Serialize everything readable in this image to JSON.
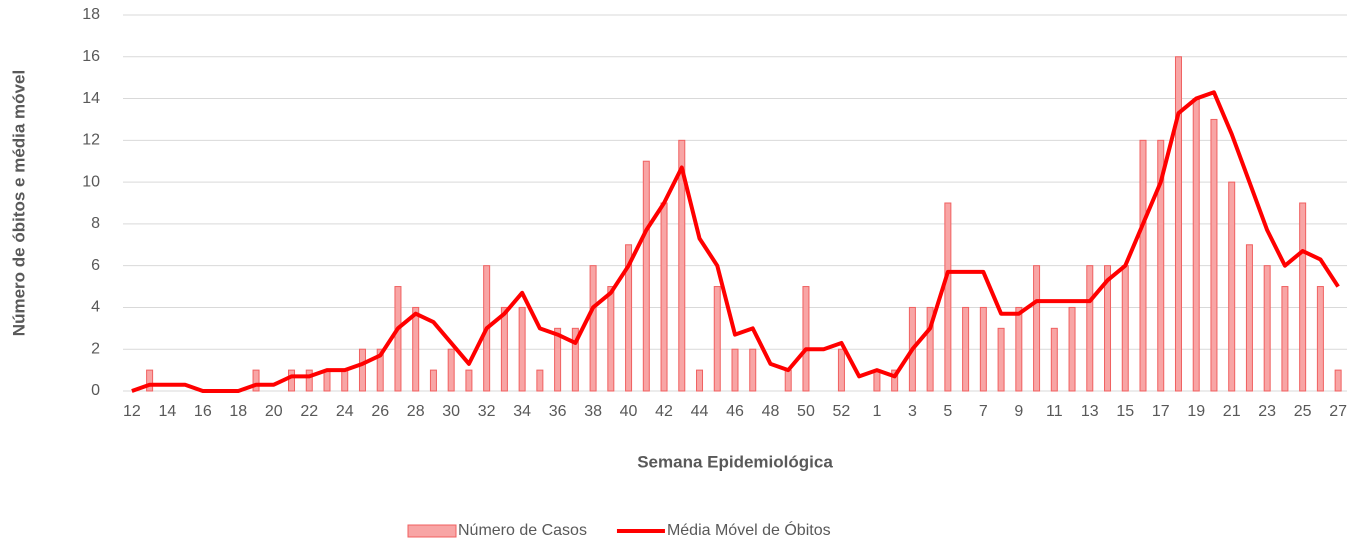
{
  "chart_data": {
    "type": "bar_line",
    "y_label": "Número de óbitos e média móvel",
    "x_label": "Semana Epidemiológica",
    "categories": [
      "12",
      null,
      "14",
      null,
      "16",
      null,
      "18",
      null,
      "20",
      null,
      "22",
      null,
      "24",
      null,
      "26",
      null,
      "28",
      null,
      "30",
      null,
      "32",
      null,
      "34",
      null,
      "36",
      null,
      "38",
      null,
      "40",
      null,
      "42",
      null,
      "44",
      null,
      "46",
      null,
      "48",
      null,
      "50",
      null,
      "52",
      null,
      "1",
      null,
      "3",
      null,
      "5",
      null,
      "7",
      null,
      "9",
      null,
      "11",
      null,
      "13",
      null,
      "15",
      null,
      "17",
      null,
      "19",
      null,
      "21",
      null,
      "23",
      null,
      "25",
      null,
      "27"
    ],
    "series": [
      {
        "name": "Número de Casos",
        "type": "bar",
        "color": "#f8a5a5",
        "stroke": "#f06060",
        "values": [
          0,
          1,
          0,
          0,
          0,
          0,
          0,
          1,
          0,
          1,
          1,
          1,
          1,
          2,
          2,
          5,
          4,
          1,
          2,
          1,
          6,
          4,
          4,
          1,
          3,
          3,
          6,
          5,
          7,
          11,
          9,
          12,
          1,
          5,
          2,
          2,
          0,
          1,
          5,
          0,
          2,
          0,
          1,
          1,
          4,
          4,
          9,
          4,
          4,
          3,
          4,
          6,
          3,
          4,
          6,
          6,
          6,
          12,
          12,
          16,
          14,
          13,
          10,
          7,
          6,
          5,
          9,
          5,
          1
        ]
      },
      {
        "name": "Média Móvel de Óbitos",
        "type": "line",
        "color": "#ff0000",
        "values": [
          0,
          0.3,
          0.3,
          0.3,
          0,
          0,
          0,
          0.3,
          0.3,
          0.7,
          0.7,
          1,
          1,
          1.3,
          1.7,
          3,
          3.7,
          3.3,
          2.3,
          1.3,
          3,
          3.7,
          4.7,
          3,
          2.7,
          2.3,
          4,
          4.7,
          6,
          7.7,
          9,
          10.7,
          7.3,
          6,
          2.7,
          3,
          1.3,
          1,
          2,
          2,
          2.3,
          0.7,
          1,
          0.7,
          2,
          3,
          5.7,
          5.7,
          5.7,
          3.7,
          3.7,
          4.3,
          4.3,
          4.3,
          4.3,
          5.3,
          6,
          8,
          10,
          13.3,
          14,
          14.3,
          12.3,
          10,
          7.7,
          6,
          6.7,
          6.3,
          5
        ]
      }
    ],
    "ylim": [
      0,
      18
    ],
    "yticks": [
      0,
      2,
      4,
      6,
      8,
      10,
      12,
      14,
      16,
      18
    ],
    "grid": true,
    "legend": "bottom"
  }
}
